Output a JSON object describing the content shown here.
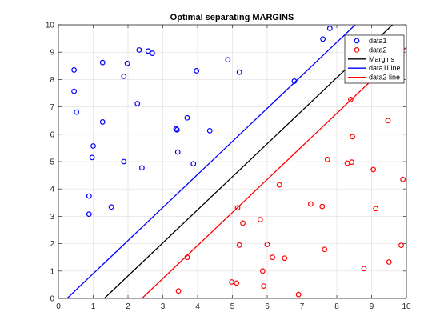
{
  "chart_data": {
    "type": "scatter",
    "title": "Optimal separating MARGINS",
    "xlabel": "",
    "ylabel": "",
    "xlim": [
      0,
      10
    ],
    "ylim": [
      0,
      10
    ],
    "xticks": [
      "0",
      "1",
      "2",
      "3",
      "4",
      "5",
      "6",
      "7",
      "8",
      "9",
      "10"
    ],
    "yticks": [
      "0",
      "1",
      "2",
      "3",
      "4",
      "5",
      "6",
      "7",
      "8",
      "9",
      "10"
    ],
    "grid": true,
    "legend_position": "top-right",
    "series": [
      {
        "name": "data1",
        "kind": "scatter",
        "marker": "circle",
        "color": "#0000ff",
        "points": [
          [
            0.45,
            8.35
          ],
          [
            0.45,
            7.57
          ],
          [
            0.52,
            6.81
          ],
          [
            0.88,
            3.74
          ],
          [
            0.88,
            3.08
          ],
          [
            0.97,
            5.15
          ],
          [
            1.0,
            5.57
          ],
          [
            1.27,
            8.62
          ],
          [
            1.27,
            6.45
          ],
          [
            1.52,
            3.34
          ],
          [
            1.88,
            8.12
          ],
          [
            1.88,
            5.0
          ],
          [
            1.98,
            8.59
          ],
          [
            2.27,
            7.12
          ],
          [
            2.32,
            9.08
          ],
          [
            2.4,
            4.77
          ],
          [
            2.58,
            9.04
          ],
          [
            2.7,
            8.96
          ],
          [
            3.38,
            6.19
          ],
          [
            3.41,
            6.16
          ],
          [
            3.43,
            5.35
          ],
          [
            3.7,
            6.6
          ],
          [
            3.88,
            4.92
          ],
          [
            3.97,
            8.32
          ],
          [
            4.35,
            6.13
          ],
          [
            4.87,
            8.72
          ],
          [
            5.2,
            8.27
          ],
          [
            6.78,
            7.94
          ],
          [
            7.6,
            9.48
          ],
          [
            7.8,
            9.87
          ]
        ]
      },
      {
        "name": "data2",
        "kind": "scatter",
        "marker": "circle",
        "color": "#ff0000",
        "points": [
          [
            3.45,
            0.27
          ],
          [
            3.7,
            1.5
          ],
          [
            4.98,
            0.6
          ],
          [
            5.12,
            0.56
          ],
          [
            5.15,
            3.31
          ],
          [
            5.2,
            1.95
          ],
          [
            5.3,
            2.75
          ],
          [
            5.8,
            2.88
          ],
          [
            5.87,
            1.0
          ],
          [
            5.9,
            0.45
          ],
          [
            6.0,
            1.97
          ],
          [
            6.15,
            1.5
          ],
          [
            6.35,
            4.15
          ],
          [
            6.5,
            1.47
          ],
          [
            6.9,
            0.14
          ],
          [
            7.25,
            3.45
          ],
          [
            7.58,
            3.36
          ],
          [
            7.65,
            1.79
          ],
          [
            7.73,
            5.08
          ],
          [
            8.3,
            4.94
          ],
          [
            8.4,
            7.27
          ],
          [
            8.43,
            4.98
          ],
          [
            8.45,
            5.91
          ],
          [
            8.78,
            1.09
          ],
          [
            9.05,
            4.71
          ],
          [
            9.12,
            3.28
          ],
          [
            9.47,
            6.5
          ],
          [
            9.5,
            1.33
          ],
          [
            9.85,
            1.94
          ],
          [
            9.9,
            4.35
          ]
        ]
      },
      {
        "name": "Margins",
        "kind": "line",
        "color": "#000000",
        "x": [
          1.32,
          9.6
        ],
        "y": [
          0,
          10
        ]
      },
      {
        "name": "data1Line",
        "kind": "line",
        "color": "#0000ff",
        "x": [
          0.25,
          8.53
        ],
        "y": [
          0,
          10
        ]
      },
      {
        "name": "data2 line",
        "kind": "line",
        "color": "#ff0000",
        "x": [
          2.4,
          10
        ],
        "y": [
          0,
          9.18
        ]
      }
    ]
  }
}
